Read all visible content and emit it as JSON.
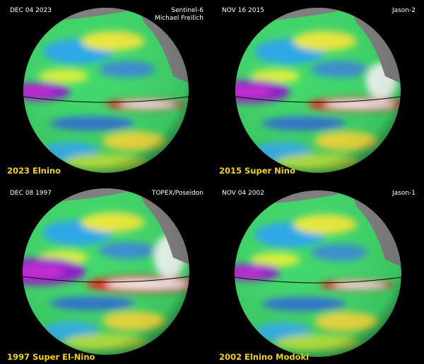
{
  "panels": [
    {
      "date": "DEC 04 2023",
      "satellite": [
        "Sentinel-6",
        "Michael Freilich"
      ],
      "caption": "2023 Elnino"
    },
    {
      "date": "NOV 16 2015",
      "satellite": [
        "Jason-2"
      ],
      "caption": "2015 Super Nino"
    },
    {
      "date": "DEC 08 1997",
      "satellite": [
        "TOPEX/Poseidon"
      ],
      "caption": "1997 Super El-Nino"
    },
    {
      "date": "NOV 04 2002",
      "satellite": [
        "Jason-1"
      ],
      "caption": "2002 Elnino Modoki"
    }
  ]
}
